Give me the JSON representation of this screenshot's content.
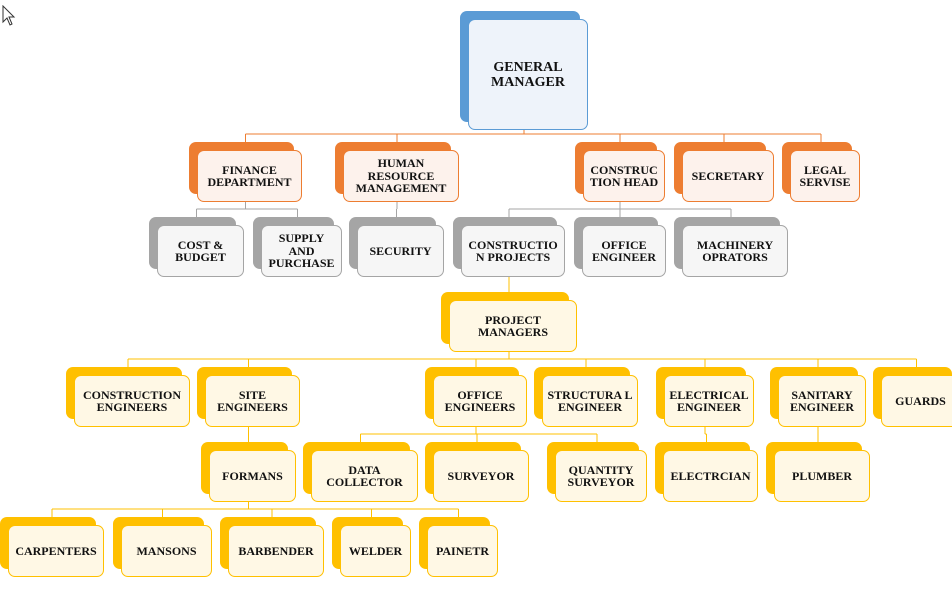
{
  "colors": {
    "blue_back": "#5b9bd5",
    "blue_border": "#5b9bd5",
    "blue_fill": "#eef3fa",
    "orange_back": "#ed7d31",
    "orange_border": "#ed7d31",
    "orange_fill": "#fdf2ec",
    "gray_back": "#a5a5a5",
    "gray_border": "#a5a5a5",
    "gray_fill": "#f6f6f6",
    "yellow_back": "#ffc000",
    "yellow_border": "#ffc000",
    "yellow_fill": "#fff8e5"
  },
  "chart": {
    "nodes": [
      {
        "id": "general_manager",
        "label": "General Manager",
        "color": "blue"
      },
      {
        "id": "finance_department",
        "label": "Finance Department",
        "color": "orange"
      },
      {
        "id": "human_resource_management",
        "label": "Human Resource Management",
        "color": "orange"
      },
      {
        "id": "construction_head",
        "label": "Construc tion Head",
        "color": "orange"
      },
      {
        "id": "secretary",
        "label": "Secretary",
        "color": "orange"
      },
      {
        "id": "legal_servise",
        "label": "Legal Servise",
        "color": "orange"
      },
      {
        "id": "cost_budget",
        "label": "Cost & Budget",
        "color": "gray"
      },
      {
        "id": "supply_purchase",
        "label": "Supply and Purchase",
        "color": "gray"
      },
      {
        "id": "security",
        "label": "Security",
        "color": "gray"
      },
      {
        "id": "construction_projects",
        "label": "Constructio n Projects",
        "color": "gray"
      },
      {
        "id": "office_engineer",
        "label": "Office Engineer",
        "color": "gray"
      },
      {
        "id": "machinery_oprators",
        "label": "Machinery Oprators",
        "color": "gray"
      },
      {
        "id": "project_managers",
        "label": "Project Managers",
        "color": "yellow"
      },
      {
        "id": "construction_engineers",
        "label": "Construction Engineers",
        "color": "yellow"
      },
      {
        "id": "site_engineers",
        "label": "Site Engineers",
        "color": "yellow"
      },
      {
        "id": "office_engineers",
        "label": "Office Engineers",
        "color": "yellow"
      },
      {
        "id": "structural_engineer",
        "label": "Structura l Engineer",
        "color": "yellow"
      },
      {
        "id": "electrical_engineer",
        "label": "Electrical Engineer",
        "color": "yellow"
      },
      {
        "id": "sanitary_engineer",
        "label": "Sanitary Engineer",
        "color": "yellow"
      },
      {
        "id": "guards",
        "label": "Guards",
        "color": "yellow"
      },
      {
        "id": "formans",
        "label": "Formans",
        "color": "yellow"
      },
      {
        "id": "data_collector",
        "label": "Data Collector",
        "color": "yellow"
      },
      {
        "id": "surveyor",
        "label": "Surveyor",
        "color": "yellow"
      },
      {
        "id": "quantity_surveyor",
        "label": "Quantity Surveyor",
        "color": "yellow"
      },
      {
        "id": "electrcian",
        "label": "Electrcian",
        "color": "yellow"
      },
      {
        "id": "plumber",
        "label": "Plumber",
        "color": "yellow"
      },
      {
        "id": "carpenters",
        "label": "Carpenters",
        "color": "yellow"
      },
      {
        "id": "mansons",
        "label": "Mansons",
        "color": "yellow"
      },
      {
        "id": "barbender",
        "label": "Barbender",
        "color": "yellow"
      },
      {
        "id": "welder",
        "label": "Welder",
        "color": "yellow"
      },
      {
        "id": "painetr",
        "label": "Painetr",
        "color": "yellow"
      }
    ],
    "edges": [
      {
        "from": "general_manager",
        "to": [
          "finance_department",
          "human_resource_management",
          "construction_head",
          "secretary",
          "legal_servise"
        ]
      },
      {
        "from": "finance_department",
        "to": [
          "cost_budget",
          "supply_purchase"
        ]
      },
      {
        "from": "human_resource_management",
        "to": [
          "security"
        ]
      },
      {
        "from": "construction_head",
        "to": [
          "construction_projects",
          "office_engineer",
          "machinery_oprators"
        ]
      },
      {
        "from": "construction_projects",
        "to": [
          "project_managers"
        ]
      },
      {
        "from": "project_managers",
        "to": [
          "construction_engineers",
          "site_engineers",
          "office_engineers",
          "structural_engineer",
          "electrical_engineer",
          "sanitary_engineer",
          "guards"
        ]
      },
      {
        "from": "site_engineers",
        "to": [
          "formans"
        ]
      },
      {
        "from": "office_engineers",
        "to": [
          "data_collector",
          "surveyor",
          "quantity_surveyor"
        ]
      },
      {
        "from": "electrical_engineer",
        "to": [
          "electrcian"
        ]
      },
      {
        "from": "sanitary_engineer",
        "to": [
          "plumber"
        ]
      },
      {
        "from": "formans",
        "to": [
          "carpenters",
          "mansons",
          "barbender",
          "welder",
          "painetr"
        ]
      }
    ]
  }
}
